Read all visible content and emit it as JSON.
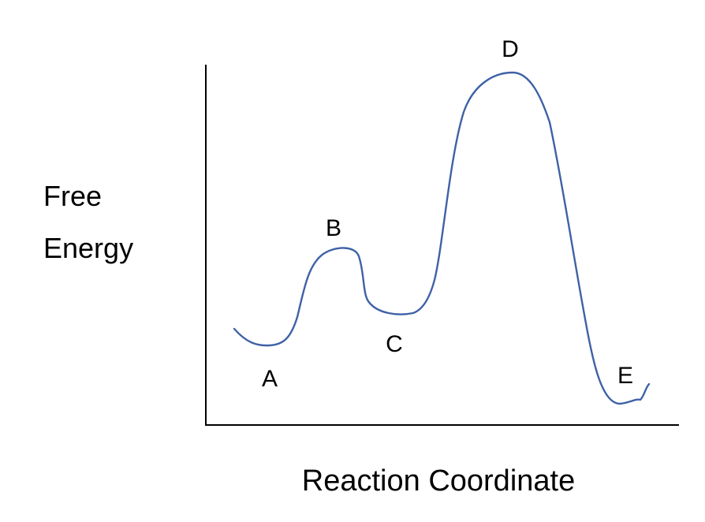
{
  "diagram": {
    "y_axis_label_lines": [
      "Free",
      "Energy"
    ],
    "x_axis_label": "Reaction Coordinate",
    "points": [
      {
        "id": "A",
        "label": "A"
      },
      {
        "id": "B",
        "label": "B"
      },
      {
        "id": "C",
        "label": "C"
      },
      {
        "id": "D",
        "label": "D"
      },
      {
        "id": "E",
        "label": "E"
      }
    ]
  },
  "colors": {
    "curve": "#3f62a6",
    "axes": "#000000",
    "text": "#000000",
    "background": "#ffffff"
  }
}
